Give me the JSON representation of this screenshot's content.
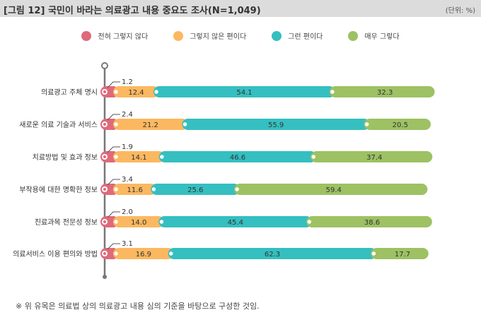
{
  "header": {
    "title": "[그림 12]  국민이 바라는 의료광고 내용 중요도 조사(N=1,049)",
    "unit": "(단위: %)"
  },
  "note": "※  위 유목은 의료법 상의 의료광고 내용 심의 기준을 바탕으로 구성한 것임.",
  "chart_data": {
    "type": "bar",
    "stacked": true,
    "orientation": "horizontal",
    "title": "국민이 바라는 의료광고 내용 중요도 조사(N=1,049)",
    "categories": [
      "의료광고 주체 명시",
      "새로운 의료 기술과 서비스",
      "치료방법 및 효과 정보",
      "부작용에 대한 명확한 정보",
      "진료과목 전문성 정보",
      "의료서비스 이용 편의와 방법"
    ],
    "series": [
      {
        "name": "전혀 그렇지 않다",
        "color": "#e0697a",
        "values": [
          1.2,
          2.4,
          1.9,
          3.4,
          2.0,
          3.1
        ]
      },
      {
        "name": "그렇지 않은 편이다",
        "color": "#fbb860",
        "values": [
          12.4,
          21.2,
          14.1,
          11.6,
          14.0,
          16.9
        ]
      },
      {
        "name": "그런 편이다",
        "color": "#35bfc0",
        "values": [
          54.1,
          55.9,
          46.6,
          25.6,
          45.4,
          62.3
        ]
      },
      {
        "name": "매우 그렇다",
        "color": "#9dc163",
        "values": [
          32.3,
          20.5,
          37.4,
          59.4,
          38.6,
          17.7
        ]
      }
    ],
    "xlim": [
      0,
      100
    ],
    "legend": "top"
  }
}
